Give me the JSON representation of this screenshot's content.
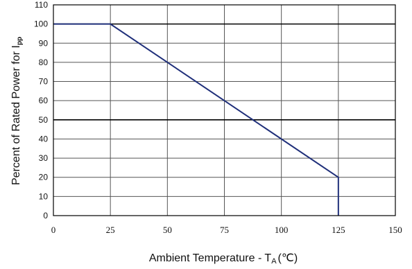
{
  "chart_data": {
    "type": "line",
    "xlabel": "Ambient Temperature - T",
    "xlabel_subscript": "A",
    "xlabel_unit": "(℃)",
    "ylabel": "Percent of Rated Power for I",
    "ylabel_subscript": "pp",
    "xlim": [
      0,
      150
    ],
    "ylim": [
      0,
      110
    ],
    "x_ticks": [
      "0",
      "25",
      "50",
      "75",
      "100",
      "125",
      "150"
    ],
    "y_ticks": [
      "0",
      "10",
      "20",
      "30",
      "40",
      "50",
      "60",
      "70",
      "80",
      "90",
      "100",
      "110"
    ],
    "emphasized_gridlines_y": [
      50,
      100
    ],
    "grid": true,
    "series": [
      {
        "color": "#1f2f7a",
        "x": [
          0,
          25,
          125,
          125
        ],
        "y": [
          100,
          100,
          20,
          0
        ]
      }
    ]
  }
}
